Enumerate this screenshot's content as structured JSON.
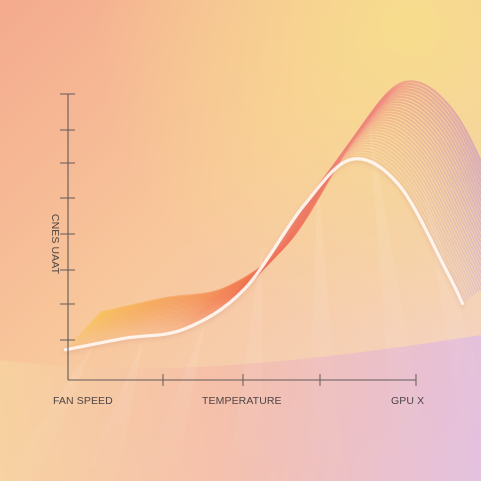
{
  "chart_data": {
    "type": "area",
    "title": "",
    "xlabel": "",
    "ylabel": "CNES UAAT",
    "categories": [
      "FAN SPEED",
      "TEMPERATURE",
      "GPU X"
    ],
    "grid": false,
    "legend": "none",
    "series": [
      {
        "values": [
          0.13,
          0.18,
          0.22,
          0.39,
          0.75,
          0.95,
          0.84,
          0.47,
          0.33
        ]
      }
    ],
    "x": [
      0,
      0.15,
      0.3,
      0.45,
      0.6,
      0.72,
      0.84,
      0.96,
      1.0
    ],
    "xlim": [
      0,
      1
    ],
    "ylim": [
      0,
      1
    ]
  },
  "colors": {
    "background_warm": "#f8b18f",
    "background_yellow": "#f9d88a",
    "ridge_orange": "#f27f58",
    "ridge_violet": "#b59be8",
    "axis": "#615a58"
  }
}
